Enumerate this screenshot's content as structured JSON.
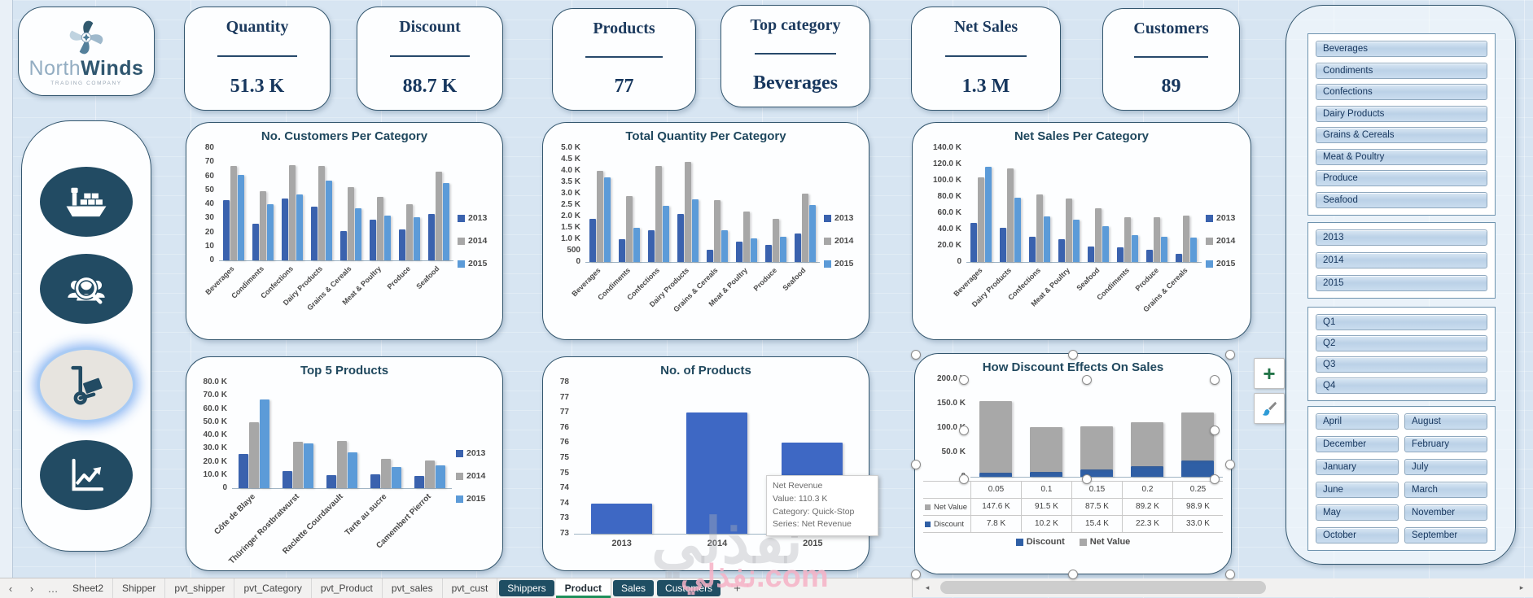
{
  "logo": {
    "name1": "North",
    "name2": "Winds",
    "subtitle": "TRADING COMPANY"
  },
  "kpis": [
    {
      "label": "Quantity",
      "value": "51.3 K"
    },
    {
      "label": "Discount",
      "value": "88.7 K"
    },
    {
      "label": "Products",
      "value": "77"
    },
    {
      "label": "Top category",
      "value": "Beverages"
    },
    {
      "label": "Net Sales",
      "value": "1.3 M"
    },
    {
      "label": "Customers",
      "value": "89"
    }
  ],
  "sidebar": {
    "icons": [
      "ship",
      "customer-search",
      "hand-truck",
      "sales-trend"
    ],
    "active_index": 2
  },
  "chart_data": [
    {
      "type": "bar",
      "title": "No. Customers Per Category",
      "legend": "right",
      "grid": false,
      "categories": [
        "Beverages",
        "Condiments",
        "Confections",
        "Dairy Products",
        "Grains & Cereals",
        "Meat & Poultry",
        "Produce",
        "Seafood"
      ],
      "series": [
        {
          "name": "2013",
          "color": "#3A62AE",
          "values": [
            43,
            26,
            44,
            38,
            21,
            29,
            22,
            33
          ]
        },
        {
          "name": "2014",
          "color": "#A7A7A7",
          "values": [
            67,
            49,
            68,
            67,
            52,
            45,
            40,
            63
          ]
        },
        {
          "name": "2015",
          "color": "#5C9BD8",
          "values": [
            61,
            40,
            47,
            57,
            37,
            32,
            31,
            55
          ]
        }
      ],
      "ylim": [
        0,
        80
      ],
      "yticks": [
        "80",
        "70",
        "60",
        "50",
        "40",
        "30",
        "20",
        "10",
        "0"
      ],
      "xlabel": "",
      "ylabel": ""
    },
    {
      "type": "bar",
      "title": "Total Quantity Per Category",
      "legend": "right",
      "grid": false,
      "categories": [
        "Beverages",
        "Condiments",
        "Confections",
        "Dairy Products",
        "Grains & Cereals",
        "Meat & Poultry",
        "Produce",
        "Seafood"
      ],
      "series": [
        {
          "name": "2013",
          "color": "#3A62AE",
          "values": [
            1900,
            1000,
            1400,
            2100,
            550,
            900,
            750,
            1250
          ]
        },
        {
          "name": "2014",
          "color": "#A7A7A7",
          "values": [
            4000,
            2900,
            4200,
            4400,
            2700,
            2200,
            1900,
            3000
          ]
        },
        {
          "name": "2015",
          "color": "#5C9BD8",
          "values": [
            3700,
            1500,
            2450,
            2750,
            1400,
            1050,
            1100,
            2500
          ]
        }
      ],
      "ylim": [
        0,
        5000
      ],
      "yticks": [
        "5.0 K",
        "4.5 K",
        "4.0 K",
        "3.5 K",
        "3.0 K",
        "2.5 K",
        "2.0 K",
        "1.5 K",
        "1.0 K",
        "500",
        "0"
      ]
    },
    {
      "type": "bar",
      "title": "Net Sales Per Category",
      "legend": "right",
      "grid": false,
      "categories": [
        "Beverages",
        "Dairy Products",
        "Confections",
        "Meat & Poultry",
        "Seafood",
        "Condiments",
        "Produce",
        "Grains & Cereals"
      ],
      "series": [
        {
          "name": "2013",
          "color": "#3A62AE",
          "values": [
            48000,
            42000,
            31000,
            28000,
            19000,
            18000,
            15000,
            10000
          ]
        },
        {
          "name": "2014",
          "color": "#A7A7A7",
          "values": [
            104000,
            115000,
            83000,
            78000,
            66000,
            55000,
            55000,
            57000
          ]
        },
        {
          "name": "2015",
          "color": "#5C9BD8",
          "values": [
            117000,
            79000,
            56000,
            52000,
            44000,
            33000,
            31000,
            30000
          ]
        }
      ],
      "ylim": [
        0,
        140000
      ],
      "yticks": [
        "140.0 K",
        "120.0 K",
        "100.0 K",
        "80.0 K",
        "60.0 K",
        "40.0 K",
        "20.0 K",
        "0"
      ]
    },
    {
      "type": "bar",
      "title": "Top 5 Products",
      "legend": "right",
      "grid": false,
      "categories": [
        "Côte de Blaye",
        "Thüringer Rostbratwurst",
        "Raclette Courdavault",
        "Tarte au sucre",
        "Camembert Pierrot"
      ],
      "series": [
        {
          "name": "2013",
          "color": "#3A62AE",
          "values": [
            26000,
            13000,
            10000,
            10500,
            9500
          ]
        },
        {
          "name": "2014",
          "color": "#A7A7A7",
          "values": [
            50000,
            35000,
            36000,
            22000,
            21000
          ]
        },
        {
          "name": "2015",
          "color": "#5C9BD8",
          "values": [
            67000,
            34000,
            27000,
            16000,
            17500
          ]
        }
      ],
      "ylim": [
        0,
        80000
      ],
      "yticks": [
        "80.0 K",
        "70.0 K",
        "60.0 K",
        "50.0 K",
        "40.0 K",
        "30.0 K",
        "20.0 K",
        "10.0 K",
        "0"
      ]
    },
    {
      "type": "bar",
      "title": "No. of Products",
      "legend": "none",
      "grid": false,
      "categories": [
        "2013",
        "2014",
        "2015"
      ],
      "series": [
        {
          "name": "No. of Products",
          "color": "#3E68C4",
          "values": [
            74,
            77,
            76
          ]
        }
      ],
      "ylim": [
        73,
        78
      ],
      "yticks": [
        "78",
        "77",
        "77",
        "76",
        "76",
        "75",
        "75",
        "74",
        "74",
        "73",
        "73"
      ],
      "tooltip": {
        "lines": [
          "Net Revenue",
          "Value: 110.3 K",
          "Category: Quick-Stop",
          "Series: Net Revenue"
        ]
      }
    },
    {
      "type": "stacked-bar",
      "title": "How Discount Effects On Sales",
      "legend": "bottom",
      "grid": false,
      "data_table": true,
      "categories": [
        "0.05",
        "0.1",
        "0.15",
        "0.2",
        "0.25"
      ],
      "series": [
        {
          "name": "Discount",
          "color": "#2F5FA5",
          "values": [
            7800,
            10200,
            15400,
            22300,
            33000
          ],
          "labels": [
            "7.8 K",
            "10.2 K",
            "15.4 K",
            "22.3 K",
            "33.0 K"
          ]
        },
        {
          "name": "Net Value",
          "color": "#A8A8A8",
          "values": [
            147600,
            91500,
            87500,
            89200,
            98900
          ],
          "labels": [
            "147.6 K",
            "91.5 K",
            "87.5 K",
            "89.2 K",
            "98.9 K"
          ]
        }
      ],
      "table_order": [
        "Net Value",
        "Discount"
      ],
      "ylim": [
        0,
        200000
      ],
      "yticks": [
        "200.0 K",
        "150.0 K",
        "100.0 K",
        "50.0 K",
        "0"
      ]
    }
  ],
  "slicers": {
    "categories": [
      "Beverages",
      "Condiments",
      "Confections",
      "Dairy Products",
      "Grains & Cereals",
      "Meat & Poultry",
      "Produce",
      "Seafood"
    ],
    "years": [
      "2013",
      "2014",
      "2015"
    ],
    "quarters": [
      "Q1",
      "Q2",
      "Q3",
      "Q4"
    ],
    "months": [
      "April",
      "August",
      "December",
      "February",
      "January",
      "July",
      "June",
      "March",
      "May",
      "November",
      "October",
      "September"
    ]
  },
  "sheet_tabs": {
    "prev": "‹",
    "next": "›",
    "more": "…",
    "add": "+",
    "items": [
      {
        "label": "Sheet2",
        "style": "plain"
      },
      {
        "label": "Shipper",
        "style": "plain"
      },
      {
        "label": "pvt_shipper",
        "style": "plain"
      },
      {
        "label": "pvt_Category",
        "style": "plain"
      },
      {
        "label": "pvt_Product",
        "style": "plain"
      },
      {
        "label": "pvt_sales",
        "style": "plain"
      },
      {
        "label": "pvt_cust",
        "style": "plain"
      },
      {
        "label": "Shippers",
        "style": "dark"
      },
      {
        "label": "Product",
        "style": "active"
      },
      {
        "label": "Sales",
        "style": "dark"
      },
      {
        "label": "Customers",
        "style": "dark"
      }
    ]
  },
  "scrollbar": {
    "left": "◂",
    "right": "▸"
  },
  "watermark": {
    "big": "نفذلي",
    "small": "نفذلي.com"
  }
}
